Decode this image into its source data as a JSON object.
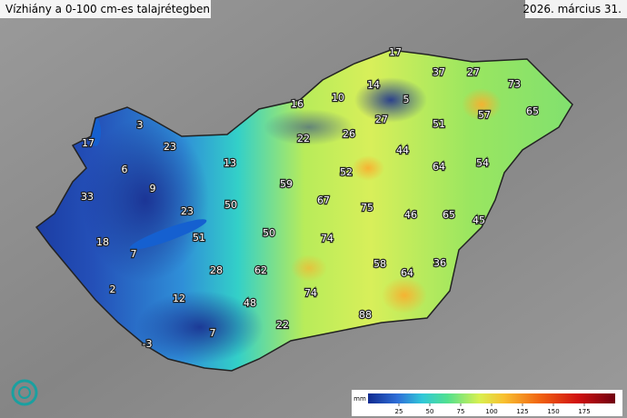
{
  "title": "Vízhiány a 0-100 cm-es talajrétegben",
  "date": "2026. március 31.",
  "labels": [
    17,
    37,
    27,
    73,
    10,
    14,
    5,
    16,
    57,
    65,
    3,
    27,
    51,
    17,
    23,
    22,
    26,
    44,
    13,
    54,
    64,
    52,
    6,
    9,
    59,
    33,
    67,
    75,
    50,
    23,
    46,
    65,
    45,
    18,
    51,
    50,
    74,
    7,
    28,
    62,
    58,
    36,
    64,
    2,
    12,
    74,
    48,
    88,
    22,
    7,
    -3
  ],
  "colorbar": {
    "unit": "mm",
    "lim": [
      0,
      200
    ],
    "ticks": [
      25,
      50,
      75,
      100,
      125,
      150,
      175
    ]
  }
}
